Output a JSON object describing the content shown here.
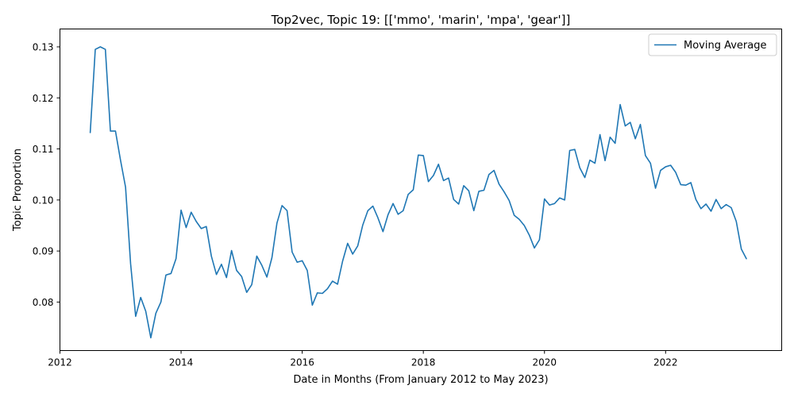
{
  "chart_data": {
    "type": "line",
    "title": "Top2vec, Topic 19: [['mmo', 'marin', 'mpa', 'gear']]",
    "xlabel": "Date in Months (From January 2012 to May 2023)",
    "ylabel": "Topic Proportion",
    "xlim": [
      "2012-01",
      "2023-12"
    ],
    "ylim": [
      0.0705,
      0.1335
    ],
    "x_ticks": [
      {
        "label": "2012",
        "value": "2012-01"
      },
      {
        "label": "2014",
        "value": "2014-01"
      },
      {
        "label": "2016",
        "value": "2016-01"
      },
      {
        "label": "2018",
        "value": "2018-01"
      },
      {
        "label": "2020",
        "value": "2020-01"
      },
      {
        "label": "2022",
        "value": "2022-01"
      }
    ],
    "y_ticks": [
      {
        "label": "0.08",
        "value": 0.08
      },
      {
        "label": "0.09",
        "value": 0.09
      },
      {
        "label": "0.10",
        "value": 0.1
      },
      {
        "label": "0.11",
        "value": 0.11
      },
      {
        "label": "0.12",
        "value": 0.12
      },
      {
        "label": "0.13",
        "value": 0.13
      }
    ],
    "grid": false,
    "legend": "top-right",
    "series": [
      {
        "name": "Moving Average",
        "color": "#1f77b4",
        "x": [
          "2012-07",
          "2012-08",
          "2012-09",
          "2012-10",
          "2012-11",
          "2012-12",
          "2013-01",
          "2013-02",
          "2013-03",
          "2013-04",
          "2013-05",
          "2013-06",
          "2013-07",
          "2013-08",
          "2013-09",
          "2013-10",
          "2013-11",
          "2013-12",
          "2014-01",
          "2014-02",
          "2014-03",
          "2014-04",
          "2014-05",
          "2014-06",
          "2014-07",
          "2014-08",
          "2014-09",
          "2014-10",
          "2014-11",
          "2014-12",
          "2015-01",
          "2015-02",
          "2015-03",
          "2015-04",
          "2015-05",
          "2015-06",
          "2015-07",
          "2015-08",
          "2015-09",
          "2015-10",
          "2015-11",
          "2015-12",
          "2016-01",
          "2016-02",
          "2016-03",
          "2016-04",
          "2016-05",
          "2016-06",
          "2016-07",
          "2016-08",
          "2016-09",
          "2016-10",
          "2016-11",
          "2016-12",
          "2017-01",
          "2017-02",
          "2017-03",
          "2017-04",
          "2017-05",
          "2017-06",
          "2017-07",
          "2017-08",
          "2017-09",
          "2017-10",
          "2017-11",
          "2017-12",
          "2018-01",
          "2018-02",
          "2018-03",
          "2018-04",
          "2018-05",
          "2018-06",
          "2018-07",
          "2018-08",
          "2018-09",
          "2018-10",
          "2018-11",
          "2018-12",
          "2019-01",
          "2019-02",
          "2019-03",
          "2019-04",
          "2019-05",
          "2019-06",
          "2019-07",
          "2019-08",
          "2019-09",
          "2019-10",
          "2019-11",
          "2019-12",
          "2020-01",
          "2020-02",
          "2020-03",
          "2020-04",
          "2020-05",
          "2020-06",
          "2020-07",
          "2020-08",
          "2020-09",
          "2020-10",
          "2020-11",
          "2020-12",
          "2021-01",
          "2021-02",
          "2021-03",
          "2021-04",
          "2021-05",
          "2021-06",
          "2021-07",
          "2021-08",
          "2021-09",
          "2021-10",
          "2021-11",
          "2021-12",
          "2022-01",
          "2022-02",
          "2022-03",
          "2022-04",
          "2022-05",
          "2022-06",
          "2022-07",
          "2022-08",
          "2022-09",
          "2022-10",
          "2022-11",
          "2022-12",
          "2023-01",
          "2023-02",
          "2023-03",
          "2023-04",
          "2023-05"
        ],
        "values": [
          0.1132,
          0.1295,
          0.13,
          0.1295,
          0.1135,
          0.1135,
          0.1078,
          0.1025,
          0.0875,
          0.0772,
          0.0809,
          0.0782,
          0.073,
          0.0778,
          0.08,
          0.0853,
          0.0856,
          0.0885,
          0.098,
          0.0946,
          0.0976,
          0.0958,
          0.0944,
          0.0948,
          0.089,
          0.0854,
          0.0874,
          0.0848,
          0.0901,
          0.0862,
          0.085,
          0.0819,
          0.0834,
          0.089,
          0.0872,
          0.0849,
          0.0887,
          0.0955,
          0.0989,
          0.0979,
          0.0898,
          0.0878,
          0.0881,
          0.0862,
          0.0794,
          0.0818,
          0.0817,
          0.0826,
          0.0841,
          0.0835,
          0.088,
          0.0915,
          0.0894,
          0.091,
          0.0951,
          0.0979,
          0.0988,
          0.0965,
          0.0938,
          0.0971,
          0.0993,
          0.0972,
          0.0979,
          0.1011,
          0.102,
          0.1088,
          0.1087,
          0.1036,
          0.1048,
          0.107,
          0.1038,
          0.1043,
          0.1001,
          0.0992,
          0.1028,
          0.1018,
          0.0979,
          0.1017,
          0.1019,
          0.105,
          0.1058,
          0.1031,
          0.1016,
          0.0999,
          0.097,
          0.0962,
          0.095,
          0.0931,
          0.0906,
          0.0922,
          0.1002,
          0.099,
          0.0993,
          0.1004,
          0.1,
          0.1097,
          0.1099,
          0.1063,
          0.1044,
          0.1078,
          0.1072,
          0.1128,
          0.1077,
          0.1123,
          0.1111,
          0.1187,
          0.1145,
          0.1152,
          0.112,
          0.1148,
          0.1087,
          0.1072,
          0.1023,
          0.1058,
          0.1065,
          0.1068,
          0.1054,
          0.103,
          0.1029,
          0.1034,
          0.1001,
          0.0983,
          0.0992,
          0.0978,
          0.1001,
          0.0983,
          0.0991,
          0.0985,
          0.0958,
          0.0904,
          0.0885
        ]
      }
    ]
  }
}
